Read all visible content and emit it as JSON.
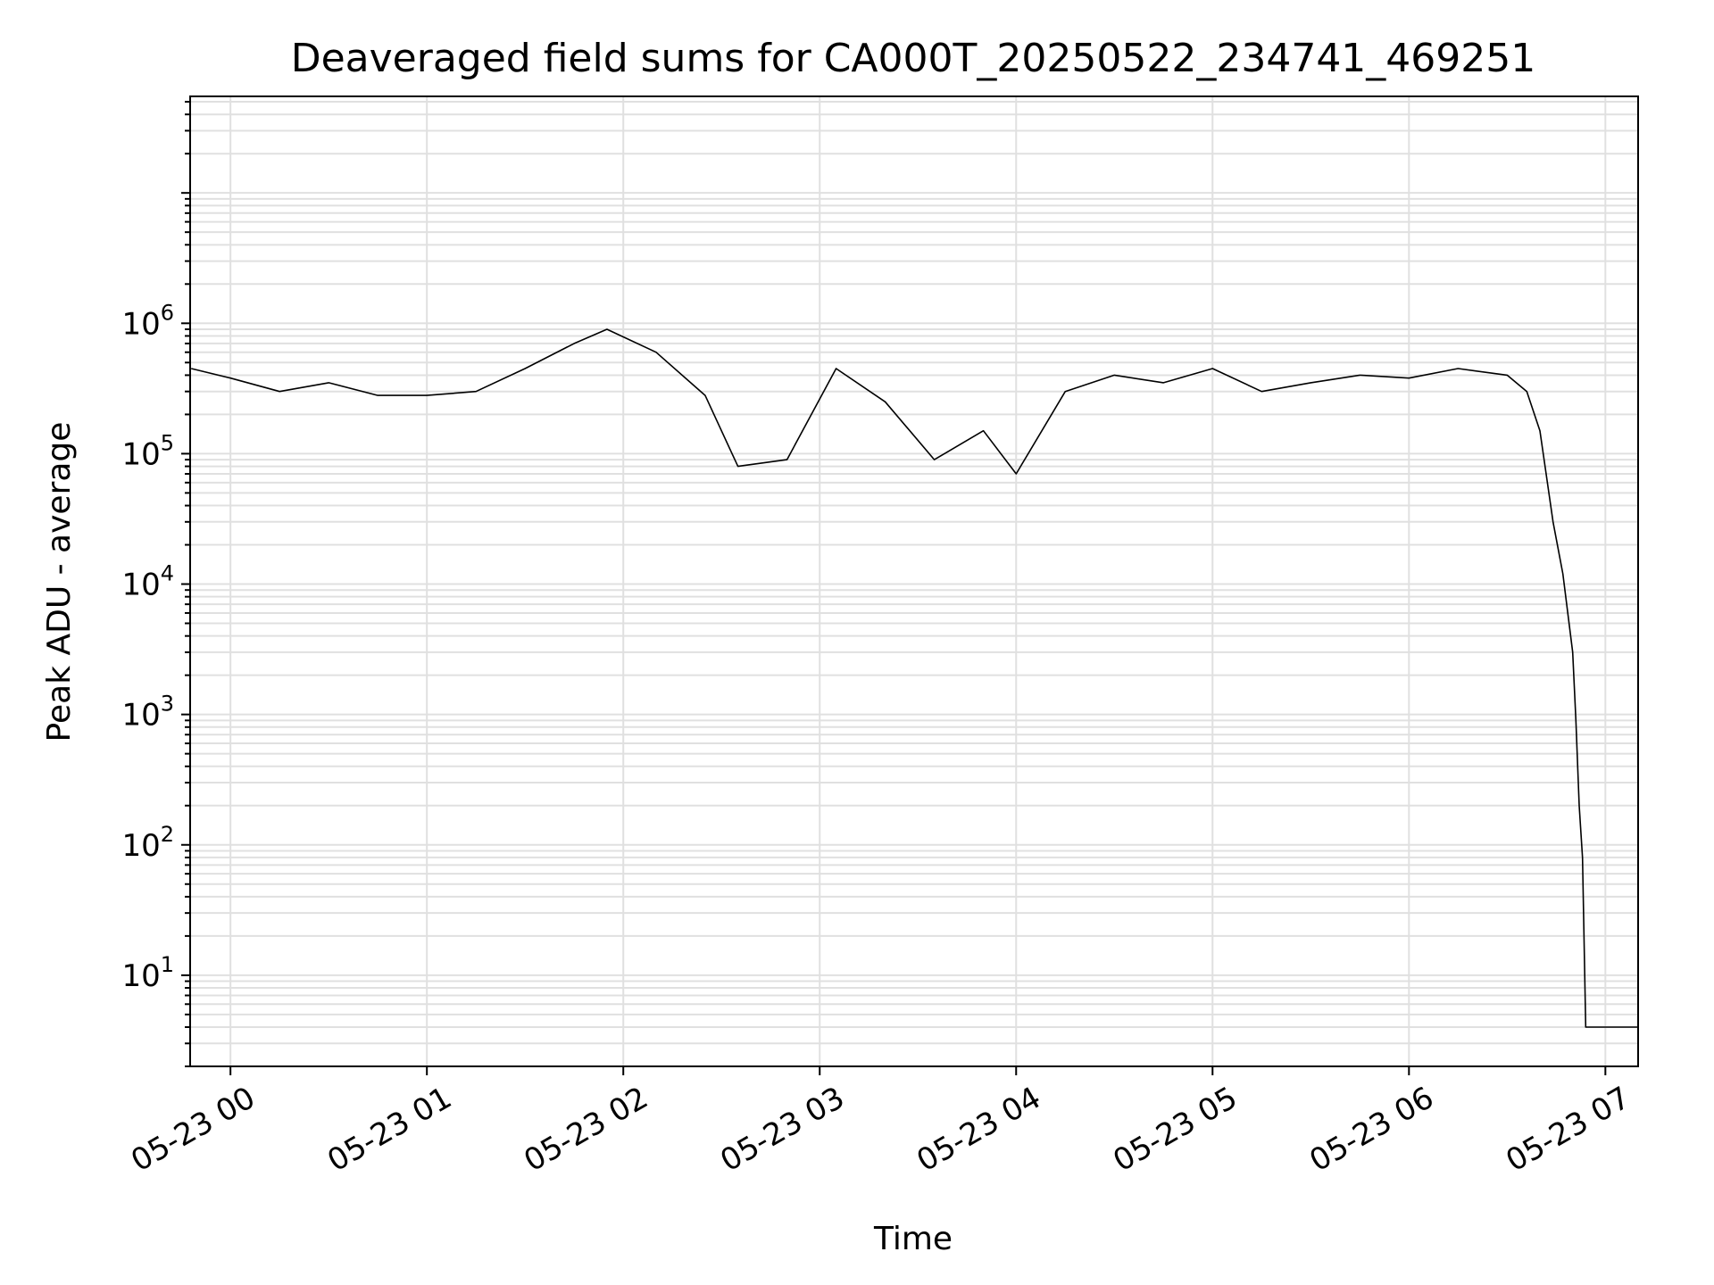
{
  "chart_data": {
    "type": "line",
    "title": "Deaveraged field sums for CA000T_20250522_234741_469251",
    "xlabel": "Time",
    "ylabel": "Peak ADU - average",
    "yscale": "log",
    "ylim": [
      2,
      55000000
    ],
    "xlim": [
      "2025-05-22 23:47:41",
      "2025-05-23 07:10:00"
    ],
    "grid": true,
    "grid_color": "#e0e0e0",
    "line_color": "#000000",
    "x_ticks": [
      {
        "t": "2025-05-23 00:00",
        "label": "05-23 00"
      },
      {
        "t": "2025-05-23 01:00",
        "label": "05-23 01"
      },
      {
        "t": "2025-05-23 02:00",
        "label": "05-23 02"
      },
      {
        "t": "2025-05-23 03:00",
        "label": "05-23 03"
      },
      {
        "t": "2025-05-23 04:00",
        "label": "05-23 04"
      },
      {
        "t": "2025-05-23 05:00",
        "label": "05-23 05"
      },
      {
        "t": "2025-05-23 06:00",
        "label": "05-23 06"
      },
      {
        "t": "2025-05-23 07:00",
        "label": "05-23 07"
      }
    ],
    "y_ticks": [
      {
        "value": 10,
        "base": "10",
        "exp": "1"
      },
      {
        "value": 100,
        "base": "10",
        "exp": "2"
      },
      {
        "value": 1000,
        "base": "10",
        "exp": "3"
      },
      {
        "value": 10000,
        "base": "10",
        "exp": "4"
      },
      {
        "value": 100000,
        "base": "10",
        "exp": "5"
      },
      {
        "value": 1000000,
        "base": "10",
        "exp": "6"
      }
    ],
    "series": [
      {
        "x": [
          "2025-05-22 23:48",
          "2025-05-23 00:00",
          "2025-05-23 00:15",
          "2025-05-23 00:30",
          "2025-05-23 00:45",
          "2025-05-23 01:00",
          "2025-05-23 01:15",
          "2025-05-23 01:30",
          "2025-05-23 01:45",
          "2025-05-23 01:55",
          "2025-05-23 02:10",
          "2025-05-23 02:25",
          "2025-05-23 02:35",
          "2025-05-23 02:50",
          "2025-05-23 03:05",
          "2025-05-23 03:20",
          "2025-05-23 03:35",
          "2025-05-23 03:50",
          "2025-05-23 04:00",
          "2025-05-23 04:15",
          "2025-05-23 04:30",
          "2025-05-23 04:45",
          "2025-05-23 05:00",
          "2025-05-23 05:15",
          "2025-05-23 05:30",
          "2025-05-23 05:45",
          "2025-05-23 06:00",
          "2025-05-23 06:15",
          "2025-05-23 06:30",
          "2025-05-23 06:36",
          "2025-05-23 06:40",
          "2025-05-23 06:44",
          "2025-05-23 06:47",
          "2025-05-23 06:50",
          "2025-05-23 06:51",
          "2025-05-23 06:52",
          "2025-05-23 06:53",
          "2025-05-23 06:54",
          "2025-05-23 07:00",
          "2025-05-23 07:10"
        ],
        "y": [
          450000,
          380000,
          300000,
          350000,
          280000,
          280000,
          300000,
          450000,
          700000,
          900000,
          600000,
          280000,
          80000,
          90000,
          450000,
          250000,
          90000,
          150000,
          70000,
          300000,
          400000,
          350000,
          450000,
          300000,
          350000,
          400000,
          380000,
          450000,
          400000,
          300000,
          150000,
          30000,
          12000,
          3000,
          900,
          200,
          80,
          4,
          4,
          4
        ]
      }
    ]
  }
}
